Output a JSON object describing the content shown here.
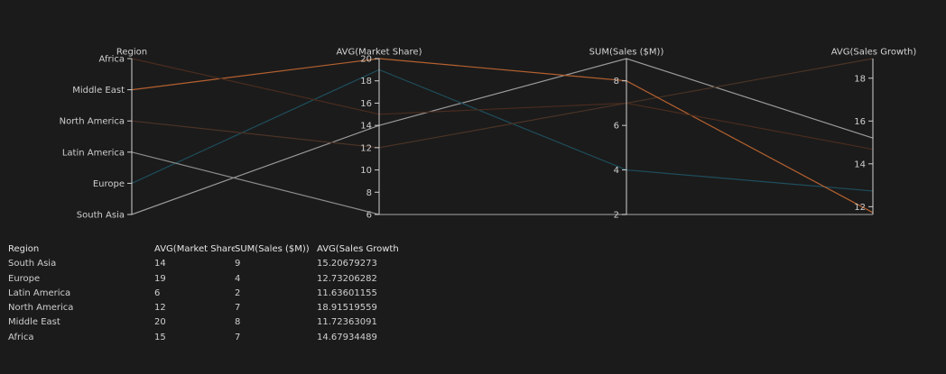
{
  "chart_data": {
    "type": "parallel-coordinates",
    "dimensions": [
      {
        "name": "Region",
        "type": "category",
        "order": [
          "Africa",
          "Middle East",
          "North America",
          "Latin America",
          "Europe",
          "South Asia"
        ]
      },
      {
        "name": "AVG(Market Share)",
        "type": "number",
        "range": [
          6,
          20
        ],
        "ticks": [
          6,
          8,
          10,
          12,
          14,
          16,
          18,
          20
        ]
      },
      {
        "name": "SUM(Sales ($M))",
        "type": "number",
        "range": [
          2,
          9
        ],
        "ticks": [
          2,
          4,
          6,
          8
        ]
      },
      {
        "name": "AVG(Sales Growth)",
        "type": "number",
        "range": [
          11.63601155,
          18.91519559
        ],
        "ticks": [
          12,
          14,
          16,
          18
        ]
      }
    ],
    "rows": [
      {
        "region": "South Asia",
        "market_share": "14",
        "sales": "9",
        "growth": "15.20679273",
        "color": "#9a9a9a"
      },
      {
        "region": "Europe",
        "market_share": "19",
        "sales": "4",
        "growth": "12.73206282",
        "color": "#1e4e5c"
      },
      {
        "region": "Latin America",
        "market_share": "6",
        "sales": "2",
        "growth": "11.63601155",
        "color": "#8c8c8c"
      },
      {
        "region": "North America",
        "market_share": "12",
        "sales": "7",
        "growth": "18.91519559",
        "color": "#4b3326"
      },
      {
        "region": "Middle East",
        "market_share": "20",
        "sales": "8",
        "growth": "11.72363091",
        "color": "#b5612f"
      },
      {
        "region": "Africa",
        "market_share": "15",
        "sales": "7",
        "growth": "14.67934489",
        "color": "#4a2c1f"
      }
    ]
  },
  "table": {
    "headers": [
      "Region",
      "AVG(Market Share)",
      "SUM(Sales ($M))",
      "AVG(Sales Growth)"
    ]
  }
}
